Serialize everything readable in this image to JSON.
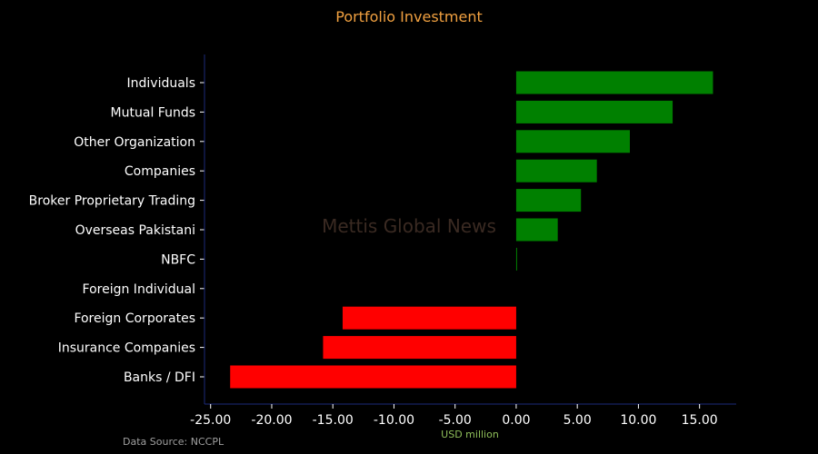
{
  "source": "Data Source: NCCPL",
  "watermark": "Mettis Global News",
  "colors": {
    "background": "#000000",
    "title": "#f0a040",
    "positive": "#008000",
    "negative": "#ff0000",
    "axis": "#1c2a7a",
    "text": "#ffffff",
    "xlabel": "#8fbf5a",
    "source": "#a0a0a0",
    "watermark": "#3a2a22"
  },
  "chart_data": {
    "type": "bar",
    "orientation": "horizontal",
    "title": "Portfolio Investment",
    "xlabel": "USD million",
    "ylabel": "",
    "categories": [
      "Individuals",
      "Mutual Funds",
      "Other Organization",
      "Companies",
      "Broker Proprietary Trading",
      "Overseas Pakistani",
      "NBFC",
      "Foreign Individual",
      "Foreign Corporates",
      "Insurance Companies",
      "Banks / DFI"
    ],
    "values": [
      16.1,
      12.8,
      9.3,
      6.6,
      5.3,
      3.4,
      0.05,
      0,
      -14.2,
      -15.8,
      -23.4
    ],
    "xlim": [
      -25.5,
      18.0
    ],
    "xticks": [
      -25,
      -20,
      -15,
      -10,
      -5,
      0,
      5,
      10,
      15
    ],
    "xtick_labels": [
      "-25.00",
      "-20.00",
      "-15.00",
      "-10.00",
      "-5.00",
      "0.00",
      "5.00",
      "10.00",
      "15.00"
    ],
    "grid": false,
    "legend": "none"
  }
}
